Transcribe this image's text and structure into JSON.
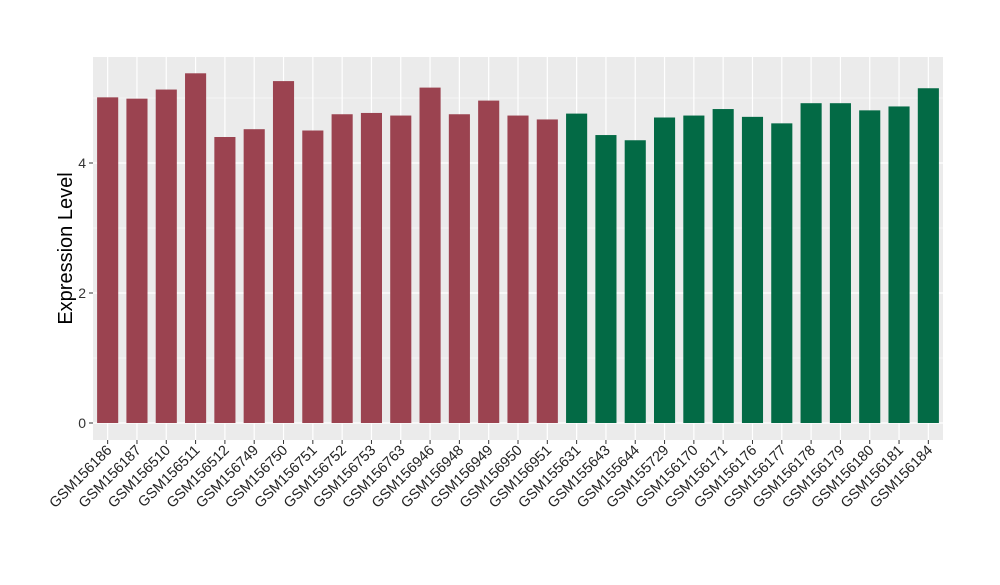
{
  "chart_data": {
    "type": "bar",
    "ylabel": "Expression Level",
    "xlabel": "",
    "title": "",
    "ylim": [
      -0.2,
      5.66
    ],
    "yticks": [
      0,
      2,
      4
    ],
    "grid": true,
    "legend": "none",
    "panel_color": "#ebebeb",
    "grid_color": "#ffffff",
    "groups": [
      {
        "color": "#9b4350",
        "count": 16
      },
      {
        "color": "#036a45",
        "count": 13
      }
    ],
    "categories": [
      "GSM156186",
      "GSM156187",
      "GSM156510",
      "GSM156511",
      "GSM156512",
      "GSM156749",
      "GSM156750",
      "GSM156751",
      "GSM156752",
      "GSM156753",
      "GSM156763",
      "GSM156946",
      "GSM156948",
      "GSM156949",
      "GSM156950",
      "GSM156951",
      "GSM155631",
      "GSM155643",
      "GSM155644",
      "GSM155729",
      "GSM156170",
      "GSM156171",
      "GSM156176",
      "GSM156177",
      "GSM156178",
      "GSM156179",
      "GSM156180",
      "GSM156181",
      "GSM156184"
    ],
    "values": [
      5.01,
      4.99,
      5.13,
      5.38,
      4.4,
      4.52,
      5.26,
      4.5,
      4.75,
      4.77,
      4.73,
      5.16,
      4.75,
      4.96,
      4.73,
      4.67,
      4.76,
      4.43,
      4.35,
      4.7,
      4.73,
      4.83,
      4.71,
      4.61,
      4.92,
      4.92,
      4.81,
      4.87,
      5.15
    ]
  }
}
